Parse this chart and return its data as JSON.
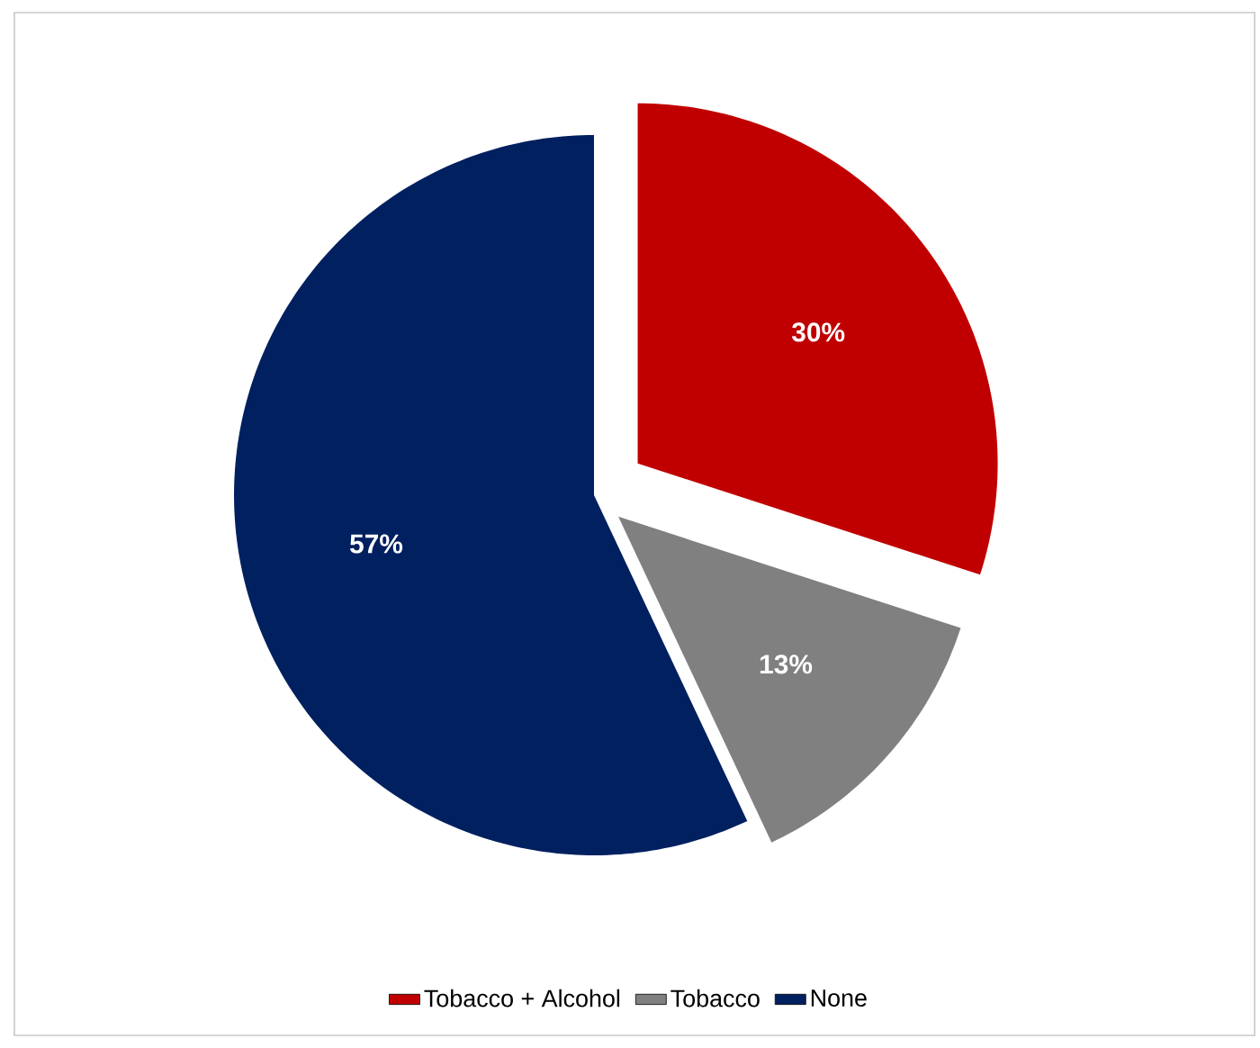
{
  "chart_data": {
    "type": "pie",
    "categories": [
      "Tobacco + Alcohol",
      "Tobacco",
      "None"
    ],
    "values": [
      30,
      13,
      57
    ],
    "colors": [
      "#c00000",
      "#808080",
      "#002060"
    ],
    "value_labels": [
      "30%",
      "13%",
      "57%"
    ],
    "legend": "bottom"
  }
}
